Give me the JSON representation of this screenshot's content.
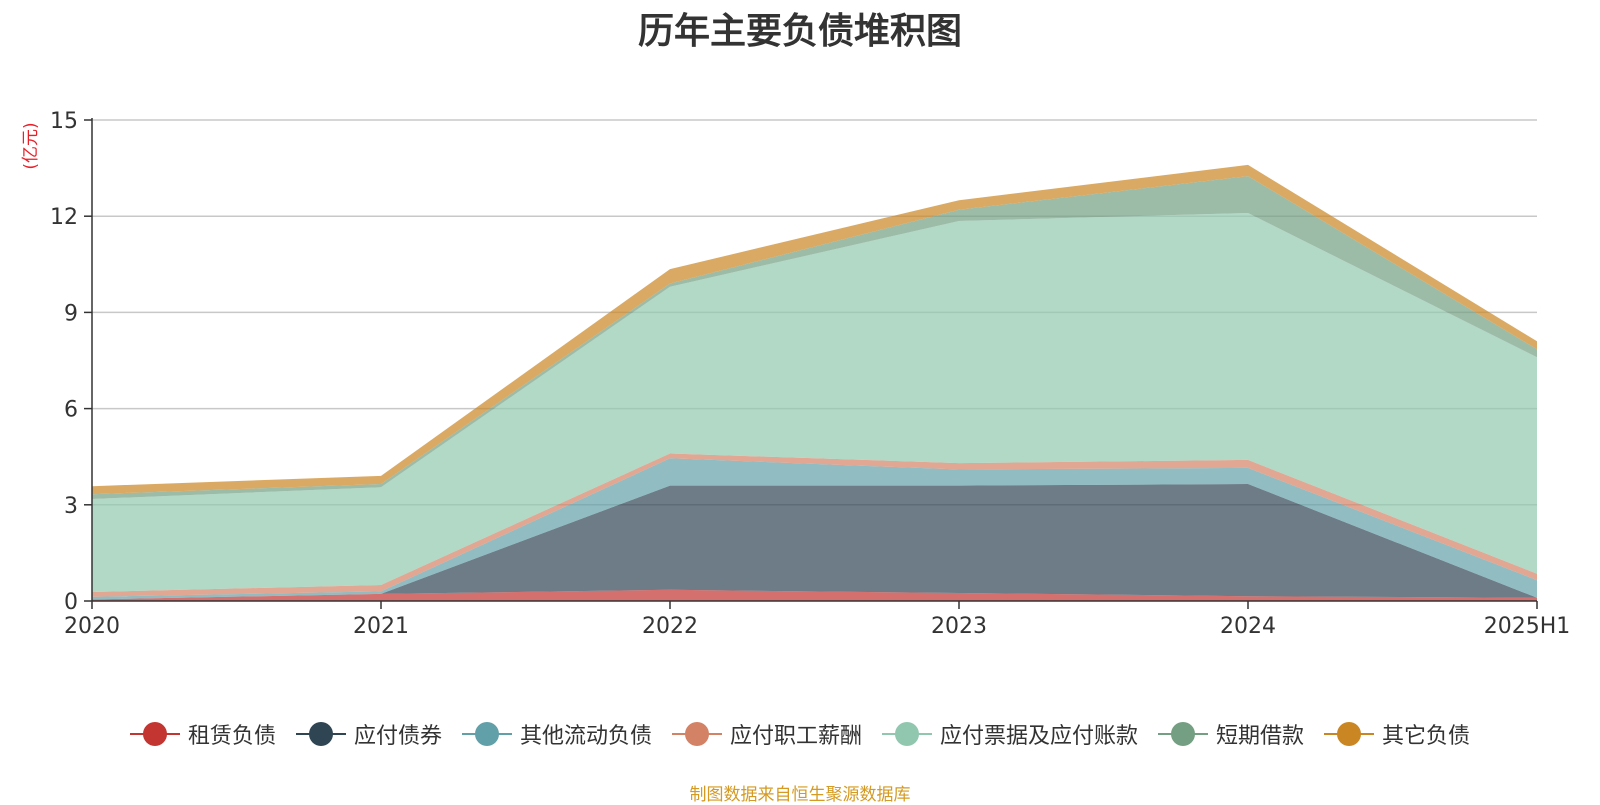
{
  "title": "历年主要负债堆积图",
  "unit_label": "(亿元)",
  "source_note": "制图数据来自恒生聚源数据库",
  "chart_data": {
    "type": "area",
    "stacked": true,
    "title": "历年主要负债堆积图",
    "ylabel": "(亿元)",
    "xlabel": "",
    "categories": [
      "2020",
      "2021",
      "2022",
      "2023",
      "2024",
      "2025H1"
    ],
    "ylim": [
      0,
      15
    ],
    "yticks": [
      0,
      3,
      6,
      9,
      12,
      15
    ],
    "grid": true,
    "legend_position": "bottom",
    "series": [
      {
        "name": "租赁负债",
        "color": "#c23531",
        "values": [
          0.05,
          0.22,
          0.35,
          0.25,
          0.15,
          0.1
        ]
      },
      {
        "name": "应付债券",
        "color": "#2f4554",
        "values": [
          0.0,
          0.0,
          3.25,
          3.35,
          3.5,
          0.0
        ]
      },
      {
        "name": "其他流动负债",
        "color": "#61a0a8",
        "values": [
          0.08,
          0.08,
          0.85,
          0.5,
          0.5,
          0.55
        ]
      },
      {
        "name": "应付职工薪酬",
        "color": "#d48265",
        "values": [
          0.15,
          0.2,
          0.15,
          0.2,
          0.25,
          0.2
        ]
      },
      {
        "name": "应付票据及应付账款",
        "color": "#91c7ae",
        "values": [
          2.9,
          3.05,
          5.2,
          7.55,
          7.7,
          6.75
        ]
      },
      {
        "name": "短期借款",
        "color": "#749f83",
        "values": [
          0.15,
          0.1,
          0.1,
          0.35,
          1.15,
          0.25
        ]
      },
      {
        "name": "其它负债",
        "color": "#ca8622",
        "values": [
          0.25,
          0.25,
          0.45,
          0.3,
          0.35,
          0.25
        ]
      }
    ]
  }
}
